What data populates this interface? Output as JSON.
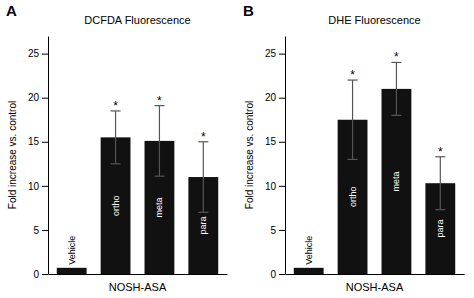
{
  "chart_data": [
    {
      "type": "bar",
      "panel_label": "A",
      "title": "DCFDA Fluorescence",
      "categories": [
        "Vehicle",
        "ortho",
        "meta",
        "para"
      ],
      "values": [
        0.7,
        15.5,
        15.1,
        11.0
      ],
      "errors": [
        0.0,
        3.0,
        4.0,
        4.0
      ],
      "sig_labels": [
        null,
        "*",
        "*",
        "*"
      ],
      "xlabel": "NOSH-ASA",
      "ylabel": "Fold increase vs. control",
      "ylim": [
        0,
        27
      ],
      "yticks": [
        0,
        5,
        10,
        15,
        20,
        25
      ],
      "color": "#111111",
      "grid": false,
      "tick_labels": "y"
    },
    {
      "type": "bar",
      "panel_label": "B",
      "title": "DHE Fluorescence",
      "categories": [
        "Vehicle",
        "ortho",
        "meta",
        "para"
      ],
      "values": [
        0.7,
        17.5,
        21.0,
        10.3
      ],
      "errors": [
        0.0,
        4.5,
        3.0,
        3.0
      ],
      "sig_labels": [
        null,
        "*",
        "*",
        "*"
      ],
      "xlabel": "NOSH-ASA",
      "ylabel": "Fold increase vs. control",
      "ylim": [
        0,
        27
      ],
      "yticks": [
        0,
        5,
        10,
        15,
        20,
        25
      ],
      "color": "#111111",
      "grid": false,
      "tick_labels": "y"
    }
  ]
}
